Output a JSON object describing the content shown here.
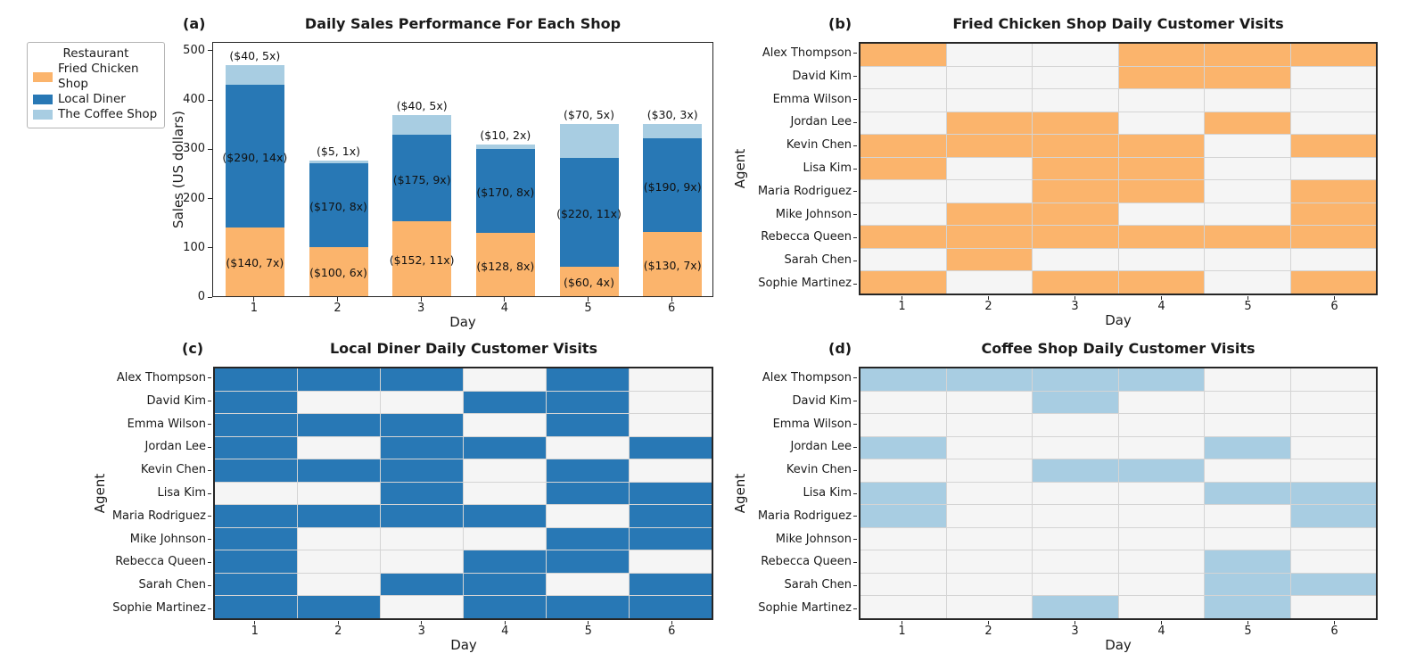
{
  "colors": {
    "fried_chicken": "#FBB46C",
    "local_diner": "#2878B5",
    "coffee_shop": "#A8CDE2",
    "heatmap_empty": "#F5F5F5",
    "gridline": "#D4D4D4",
    "spine": "#262626",
    "background": "#FFFFFF"
  },
  "legend": {
    "title": "Restaurant",
    "entries": [
      {
        "label": "Fried Chicken Shop",
        "color_key": "fried_chicken"
      },
      {
        "label": "Local Diner",
        "color_key": "local_diner"
      },
      {
        "label": "The Coffee Shop",
        "color_key": "coffee_shop"
      }
    ]
  },
  "agents": [
    "Alex Thompson",
    "David Kim",
    "Emma Wilson",
    "Jordan Lee",
    "Kevin Chen",
    "Lisa Kim",
    "Maria Rodriguez",
    "Mike Johnson",
    "Rebecca Queen",
    "Sarah Chen",
    "Sophie Martinez"
  ],
  "days": [
    "1",
    "2",
    "3",
    "4",
    "5",
    "6"
  ],
  "chart_data": [
    {
      "id": "a",
      "panel_label": "(a)",
      "type": "bar",
      "title": "Daily Sales Performance For Each Shop",
      "xlabel": "Day",
      "ylabel": "Sales (US dollars)",
      "ylim": [
        0,
        518
      ],
      "yticks": [
        0,
        100,
        200,
        300,
        400,
        500
      ],
      "categories": [
        "1",
        "2",
        "3",
        "4",
        "5",
        "6"
      ],
      "series": [
        {
          "name": "Fried Chicken Shop",
          "color_key": "fried_chicken",
          "values": [
            140,
            100,
            152,
            128,
            60,
            130
          ],
          "labels": [
            "($140, 7x)",
            "($100, 6x)",
            "($152, 11x)",
            "($128, 8x)",
            "($60, 4x)",
            "($130, 7x)"
          ],
          "label_position": "inside"
        },
        {
          "name": "Local Diner",
          "color_key": "local_diner",
          "values": [
            290,
            170,
            175,
            170,
            220,
            190
          ],
          "labels": [
            "($290, 14x)",
            "($170, 8x)",
            "($175, 9x)",
            "($170, 8x)",
            "($220, 11x)",
            "($190, 9x)"
          ],
          "label_position": "inside"
        },
        {
          "name": "The Coffee Shop",
          "color_key": "coffee_shop",
          "values": [
            40,
            5,
            40,
            10,
            70,
            30
          ],
          "labels": [
            "($40, 5x)",
            "($5, 1x)",
            "($40, 5x)",
            "($10, 2x)",
            "($70, 5x)",
            "($30, 3x)"
          ],
          "label_position": "above"
        }
      ]
    },
    {
      "id": "b",
      "panel_label": "(b)",
      "type": "heatmap",
      "title": "Fried Chicken Shop Daily Customer Visits",
      "xlabel": "Day",
      "ylabel": "Agent",
      "fill_color_key": "fried_chicken",
      "columns": [
        "1",
        "2",
        "3",
        "4",
        "5",
        "6"
      ],
      "matrix": [
        [
          1,
          0,
          0,
          1,
          1,
          1
        ],
        [
          0,
          0,
          0,
          1,
          1,
          0
        ],
        [
          0,
          0,
          0,
          0,
          0,
          0
        ],
        [
          0,
          1,
          1,
          0,
          1,
          0
        ],
        [
          1,
          1,
          1,
          1,
          0,
          1
        ],
        [
          1,
          0,
          1,
          1,
          0,
          0
        ],
        [
          0,
          0,
          1,
          1,
          0,
          1
        ],
        [
          0,
          1,
          1,
          0,
          0,
          1
        ],
        [
          1,
          1,
          1,
          1,
          1,
          1
        ],
        [
          0,
          1,
          0,
          0,
          0,
          0
        ],
        [
          1,
          0,
          1,
          1,
          0,
          1
        ]
      ]
    },
    {
      "id": "c",
      "panel_label": "(c)",
      "type": "heatmap",
      "title": "Local Diner Daily Customer Visits",
      "xlabel": "Day",
      "ylabel": "Agent",
      "fill_color_key": "local_diner",
      "columns": [
        "1",
        "2",
        "3",
        "4",
        "5",
        "6"
      ],
      "matrix": [
        [
          1,
          1,
          1,
          0,
          1,
          0
        ],
        [
          1,
          0,
          0,
          1,
          1,
          0
        ],
        [
          1,
          1,
          1,
          0,
          1,
          0
        ],
        [
          1,
          0,
          1,
          1,
          0,
          1
        ],
        [
          1,
          1,
          1,
          0,
          1,
          0
        ],
        [
          0,
          0,
          1,
          0,
          1,
          1
        ],
        [
          1,
          1,
          1,
          1,
          0,
          1
        ],
        [
          1,
          0,
          0,
          0,
          1,
          1
        ],
        [
          1,
          0,
          0,
          1,
          1,
          0
        ],
        [
          1,
          0,
          1,
          1,
          0,
          1
        ],
        [
          1,
          1,
          0,
          1,
          1,
          1
        ]
      ]
    },
    {
      "id": "d",
      "panel_label": "(d)",
      "type": "heatmap",
      "title": "Coffee Shop Daily Customer Visits",
      "xlabel": "Day",
      "ylabel": "Agent",
      "fill_color_key": "coffee_shop",
      "columns": [
        "1",
        "2",
        "3",
        "4",
        "5",
        "6"
      ],
      "matrix": [
        [
          1,
          1,
          1,
          1,
          0,
          0
        ],
        [
          0,
          0,
          1,
          0,
          0,
          0
        ],
        [
          0,
          0,
          0,
          0,
          0,
          0
        ],
        [
          1,
          0,
          0,
          0,
          1,
          0
        ],
        [
          0,
          0,
          1,
          1,
          0,
          0
        ],
        [
          1,
          0,
          0,
          0,
          1,
          1
        ],
        [
          1,
          0,
          0,
          0,
          0,
          1
        ],
        [
          0,
          0,
          0,
          0,
          0,
          0
        ],
        [
          0,
          0,
          0,
          0,
          1,
          0
        ],
        [
          0,
          0,
          0,
          0,
          1,
          1
        ],
        [
          0,
          0,
          1,
          0,
          1,
          0
        ]
      ]
    }
  ]
}
